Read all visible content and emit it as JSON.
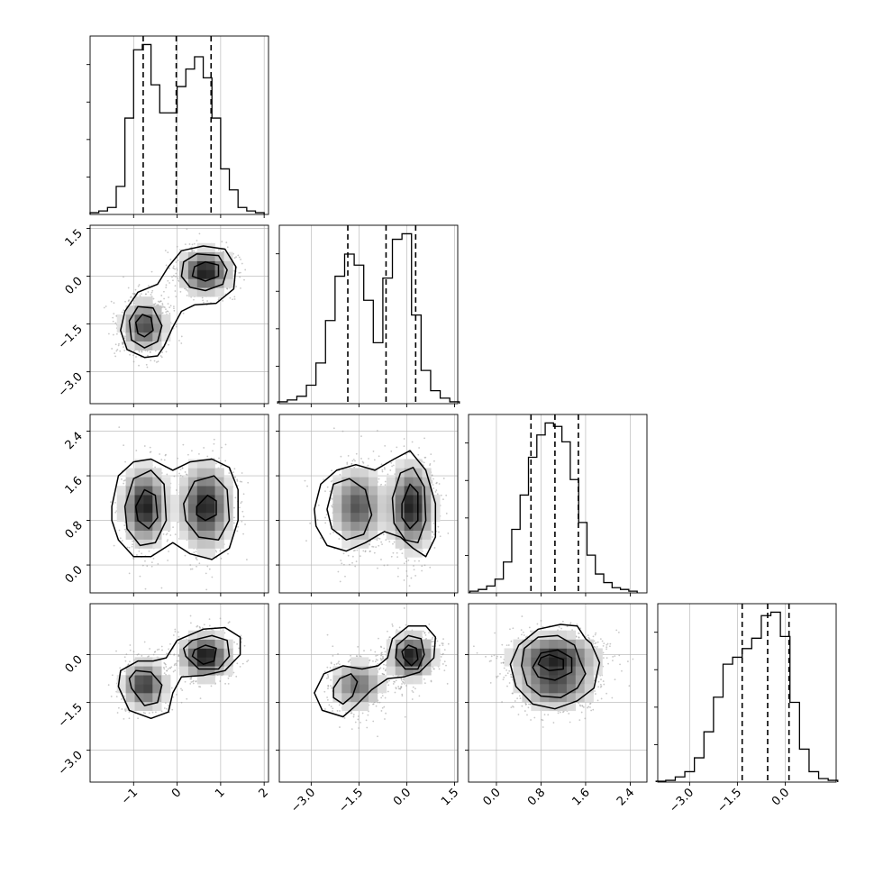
{
  "colors": {
    "ink": "#000000",
    "grid": "#b0b0b0",
    "scatter": "#9a9a9a",
    "bg": "#ffffff"
  },
  "chart_data": {
    "type": "corner",
    "parameters": 4,
    "grid": true,
    "panels": {
      "hist_0": {
        "type": "bar",
        "xlim": [
          -2,
          2.1
        ],
        "bins": [
          -1.9,
          -1.7,
          -1.5,
          -1.3,
          -1.1,
          -0.9,
          -0.7,
          -0.5,
          -0.3,
          -0.1,
          0.1,
          0.3,
          0.5,
          0.7,
          0.9,
          1.1,
          1.3,
          1.5,
          1.7,
          1.9
        ],
        "values": [
          0.01,
          0.02,
          0.04,
          0.16,
          0.55,
          0.94,
          0.97,
          0.74,
          0.58,
          0.58,
          0.73,
          0.83,
          0.9,
          0.78,
          0.55,
          0.26,
          0.14,
          0.04,
          0.02,
          0.01
        ],
        "quantiles": [
          -0.78,
          -0.02,
          0.78
        ]
      },
      "hist_1": {
        "type": "bar",
        "xlim": [
          -4,
          1.6
        ],
        "bins": [
          -3.9,
          -3.6,
          -3.3,
          -3.0,
          -2.7,
          -2.4,
          -2.1,
          -1.8,
          -1.5,
          -1.2,
          -0.9,
          -0.6,
          -0.3,
          0.0,
          0.3,
          0.6,
          0.9,
          1.2,
          1.5
        ],
        "values": [
          0.01,
          0.02,
          0.04,
          0.1,
          0.22,
          0.45,
          0.69,
          0.81,
          0.75,
          0.56,
          0.33,
          0.68,
          0.89,
          0.92,
          0.48,
          0.18,
          0.07,
          0.03,
          0.01
        ],
        "quantiles": [
          -1.85,
          -0.65,
          0.28
        ]
      },
      "hist_2": {
        "type": "bar",
        "xlim": [
          -0.5,
          2.7
        ],
        "bins": [
          -0.4,
          -0.25,
          -0.1,
          0.05,
          0.2,
          0.35,
          0.5,
          0.65,
          0.8,
          0.95,
          1.1,
          1.25,
          1.4,
          1.55,
          1.7,
          1.85,
          2.0,
          2.15,
          2.3,
          2.45
        ],
        "values": [
          0.01,
          0.02,
          0.04,
          0.08,
          0.18,
          0.37,
          0.57,
          0.79,
          0.92,
          0.99,
          0.97,
          0.88,
          0.66,
          0.41,
          0.22,
          0.11,
          0.06,
          0.03,
          0.02,
          0.01
        ],
        "quantiles": [
          0.62,
          1.05,
          1.47
        ]
      },
      "hist_3": {
        "type": "bar",
        "xlim": [
          -4,
          1.6
        ],
        "bins": [
          -3.9,
          -3.6,
          -3.3,
          -3.0,
          -2.7,
          -2.4,
          -2.1,
          -1.8,
          -1.5,
          -1.2,
          -0.9,
          -0.6,
          -0.3,
          0.0,
          0.3,
          0.6,
          0.9,
          1.2,
          1.5
        ],
        "values": [
          0.005,
          0.01,
          0.03,
          0.06,
          0.14,
          0.29,
          0.49,
          0.68,
          0.72,
          0.77,
          0.83,
          0.96,
          0.98,
          0.84,
          0.46,
          0.19,
          0.06,
          0.02,
          0.01
        ],
        "quantiles": [
          -1.35,
          -0.55,
          0.12
        ]
      }
    },
    "axes": {
      "p0": {
        "range": [
          -2,
          2.1
        ],
        "ticks": [
          -1,
          0,
          1,
          2
        ],
        "tick_labels": [
          "−1",
          "0",
          "1",
          "2"
        ]
      },
      "p1": {
        "range": [
          -4,
          1.6
        ],
        "ticks": [
          -3.0,
          -1.5,
          0.0,
          1.5
        ],
        "tick_labels": [
          "−3.0",
          "−1.5",
          "0.0",
          "1.5"
        ]
      },
      "p2": {
        "range": [
          -0.5,
          2.7
        ],
        "ticks": [
          0.0,
          0.8,
          1.6,
          2.4
        ],
        "tick_labels": [
          "0.0",
          "0.8",
          "1.6",
          "2.4"
        ]
      },
      "p3": {
        "range": [
          -4,
          1.6
        ],
        "ticks": [
          -3.0,
          -1.5,
          0.0
        ],
        "tick_labels": [
          "−3.0",
          "−1.5",
          "0.0"
        ]
      }
    },
    "modes": [
      {
        "mean": [
          -0.75,
          -1.55,
          1.05,
          -0.95
        ],
        "sd": [
          0.28,
          0.45,
          0.38,
          0.42
        ],
        "weight": 0.45
      },
      {
        "mean": [
          0.65,
          0.15,
          1.05,
          -0.05
        ],
        "sd": [
          0.32,
          0.38,
          0.42,
          0.38
        ],
        "weight": 0.55
      }
    ],
    "contours": {
      "p1_vs_p0": [
        {
          "level": 0.4,
          "x": [
            -0.75,
            -0.45,
            -0.3,
            -0.1,
            0.1,
            0.4,
            0.9,
            1.3,
            1.35,
            1.1,
            0.6,
            0.1,
            -0.2,
            -0.45,
            -0.9,
            -1.2,
            -1.3,
            -1.15
          ],
          "y": [
            -2.55,
            -2.5,
            -2.2,
            -1.6,
            -1.1,
            -0.9,
            -0.85,
            -0.4,
            0.3,
            0.85,
            0.95,
            0.8,
            0.3,
            -0.25,
            -0.5,
            -1.1,
            -1.7,
            -2.3
          ]
        },
        {
          "level": 0.7,
          "x": [
            -0.75,
            -0.45,
            -0.35,
            -0.55,
            -0.9,
            -1.1,
            -1.05
          ],
          "y": [
            -2.25,
            -2.05,
            -1.55,
            -1.0,
            -0.95,
            -1.4,
            -2.0
          ]
        },
        {
          "level": 0.7,
          "x": [
            0.65,
            1.05,
            1.15,
            0.95,
            0.45,
            0.15,
            0.1,
            0.3
          ],
          "y": [
            -0.45,
            -0.25,
            0.2,
            0.65,
            0.7,
            0.45,
            0.0,
            -0.35
          ]
        },
        {
          "level": 0.9,
          "x": [
            -0.75,
            -0.55,
            -0.6,
            -0.8,
            -0.95,
            -0.9
          ],
          "y": [
            -1.9,
            -1.7,
            -1.3,
            -1.2,
            -1.45,
            -1.8
          ]
        },
        {
          "level": 0.9,
          "x": [
            0.65,
            0.95,
            0.95,
            0.65,
            0.4,
            0.35
          ],
          "y": [
            -0.15,
            0.0,
            0.35,
            0.45,
            0.3,
            0.0
          ]
        }
      ],
      "p2_vs_p0": [
        {
          "level": 0.4,
          "x": [
            -1.5,
            -1.35,
            -1.0,
            -0.6,
            -0.1,
            0.3,
            0.8,
            1.2,
            1.4,
            1.4,
            1.2,
            0.8,
            0.3,
            -0.1,
            -0.6,
            -1.0,
            -1.35,
            -1.5
          ],
          "y": [
            1.05,
            1.6,
            1.85,
            1.9,
            1.7,
            1.85,
            1.9,
            1.75,
            1.35,
            0.8,
            0.3,
            0.1,
            0.2,
            0.4,
            0.15,
            0.15,
            0.45,
            0.8
          ]
        },
        {
          "level": 0.7,
          "x": [
            -1.2,
            -1.0,
            -0.6,
            -0.3,
            -0.25,
            -0.5,
            -0.85,
            -1.15
          ],
          "y": [
            1.05,
            1.55,
            1.7,
            1.45,
            0.8,
            0.4,
            0.35,
            0.65
          ]
        },
        {
          "level": 0.7,
          "x": [
            0.15,
            0.4,
            0.85,
            1.15,
            1.2,
            0.95,
            0.5,
            0.2
          ],
          "y": [
            1.1,
            1.5,
            1.6,
            1.35,
            0.8,
            0.45,
            0.5,
            0.8
          ]
        },
        {
          "level": 0.9,
          "x": [
            -0.95,
            -0.75,
            -0.5,
            -0.45,
            -0.65,
            -0.9
          ],
          "y": [
            1.05,
            1.35,
            1.25,
            0.85,
            0.65,
            0.8
          ]
        },
        {
          "level": 0.9,
          "x": [
            0.45,
            0.7,
            0.9,
            0.9,
            0.65,
            0.45
          ],
          "y": [
            1.05,
            1.25,
            1.15,
            0.9,
            0.8,
            0.9
          ]
        }
      ],
      "p2_vs_p1": [
        {
          "level": 0.4,
          "x": [
            -2.9,
            -2.7,
            -2.2,
            -1.6,
            -1.0,
            -0.4,
            0.1,
            0.6,
            0.9,
            0.9,
            0.6,
            0.2,
            -0.2,
            -0.7,
            -1.3,
            -1.9,
            -2.5,
            -2.85
          ],
          "y": [
            1.0,
            1.45,
            1.7,
            1.8,
            1.7,
            1.9,
            2.05,
            1.7,
            1.1,
            0.5,
            0.15,
            0.3,
            0.5,
            0.6,
            0.4,
            0.25,
            0.35,
            0.7
          ]
        },
        {
          "level": 0.7,
          "x": [
            -2.5,
            -2.3,
            -1.8,
            -1.3,
            -1.1,
            -1.35,
            -1.9,
            -2.35
          ],
          "y": [
            1.0,
            1.45,
            1.55,
            1.35,
            0.9,
            0.55,
            0.45,
            0.65
          ]
        },
        {
          "level": 0.7,
          "x": [
            -0.45,
            -0.2,
            0.2,
            0.55,
            0.6,
            0.35,
            -0.05,
            -0.4
          ],
          "y": [
            1.2,
            1.65,
            1.75,
            1.4,
            0.8,
            0.4,
            0.45,
            0.75
          ]
        },
        {
          "level": 0.9,
          "x": [
            -0.15,
            0.1,
            0.35,
            0.35,
            0.1,
            -0.15
          ],
          "y": [
            1.1,
            1.45,
            1.3,
            0.8,
            0.65,
            0.85
          ]
        }
      ],
      "p3_vs_p0": [
        {
          "level": 0.4,
          "x": [
            -1.35,
            -1.1,
            -0.6,
            -0.2,
            -0.1,
            0.1,
            0.6,
            1.1,
            1.45,
            1.45,
            1.1,
            0.6,
            0.0,
            -0.25,
            -0.55,
            -0.9,
            -1.3
          ],
          "y": [
            -1.0,
            -1.75,
            -2.0,
            -1.8,
            -1.2,
            -0.7,
            -0.65,
            -0.5,
            0.0,
            0.55,
            0.85,
            0.8,
            0.45,
            -0.1,
            -0.2,
            -0.2,
            -0.5
          ]
        },
        {
          "level": 0.7,
          "x": [
            -1.05,
            -0.75,
            -0.45,
            -0.35,
            -0.6,
            -0.95,
            -1.1
          ],
          "y": [
            -1.05,
            -1.6,
            -1.5,
            -0.95,
            -0.55,
            -0.5,
            -0.75
          ]
        },
        {
          "level": 0.7,
          "x": [
            0.2,
            0.5,
            0.95,
            1.2,
            1.15,
            0.8,
            0.35,
            0.15
          ],
          "y": [
            -0.05,
            -0.45,
            -0.45,
            -0.05,
            0.45,
            0.6,
            0.45,
            0.2
          ]
        },
        {
          "level": 0.9,
          "x": [
            0.35,
            0.6,
            0.85,
            0.9,
            0.65,
            0.4
          ],
          "y": [
            -0.05,
            -0.3,
            -0.2,
            0.2,
            0.3,
            0.15
          ]
        }
      ],
      "p3_vs_p1": [
        {
          "level": 0.4,
          "x": [
            -2.9,
            -2.65,
            -2.0,
            -1.6,
            -1.1,
            -0.6,
            -0.1,
            0.4,
            0.85,
            0.9,
            0.6,
            0.05,
            -0.45,
            -0.6,
            -0.9,
            -1.4,
            -2.0,
            -2.6
          ],
          "y": [
            -1.2,
            -1.75,
            -1.95,
            -1.6,
            -1.1,
            -0.75,
            -0.7,
            -0.55,
            -0.1,
            0.55,
            0.9,
            0.9,
            0.5,
            -0.1,
            -0.35,
            -0.45,
            -0.35,
            -0.6
          ]
        },
        {
          "level": 0.7,
          "x": [
            -2.3,
            -2.0,
            -1.7,
            -1.55,
            -1.75,
            -2.1,
            -2.3
          ],
          "y": [
            -1.35,
            -1.55,
            -1.3,
            -0.85,
            -0.6,
            -0.75,
            -1.05
          ]
        },
        {
          "level": 0.7,
          "x": [
            -0.35,
            -0.05,
            0.35,
            0.55,
            0.45,
            0.05,
            -0.3
          ],
          "y": [
            -0.1,
            -0.45,
            -0.45,
            0.0,
            0.5,
            0.6,
            0.3
          ]
        },
        {
          "level": 0.9,
          "x": [
            -0.1,
            0.15,
            0.35,
            0.3,
            0.05,
            -0.15
          ],
          "y": [
            -0.1,
            -0.35,
            -0.15,
            0.2,
            0.3,
            0.1
          ]
        }
      ],
      "p3_vs_p2": [
        {
          "level": 0.4,
          "x": [
            0.25,
            0.35,
            0.65,
            1.05,
            1.45,
            1.75,
            1.85,
            1.7,
            1.6,
            1.45,
            1.15,
            0.75,
            0.4
          ],
          "y": [
            -0.3,
            -1.0,
            -1.55,
            -1.7,
            -1.45,
            -1.05,
            -0.25,
            0.35,
            0.5,
            0.9,
            0.95,
            0.8,
            0.3
          ]
        },
        {
          "level": 0.7,
          "x": [
            0.45,
            0.55,
            0.8,
            1.15,
            1.45,
            1.6,
            1.5,
            1.4,
            1.1,
            0.75,
            0.5
          ],
          "y": [
            -0.35,
            -0.95,
            -1.3,
            -1.35,
            -1.05,
            -0.6,
            -0.2,
            0.3,
            0.6,
            0.55,
            0.2
          ]
        },
        {
          "level": 0.9,
          "x": [
            0.65,
            0.75,
            1.05,
            1.35,
            1.35,
            1.1,
            0.8
          ],
          "y": [
            -0.4,
            -0.7,
            -0.8,
            -0.55,
            -0.1,
            0.15,
            0.05
          ]
        },
        {
          "level": 0.95,
          "x": [
            0.75,
            0.95,
            1.2,
            1.2,
            0.95,
            0.8
          ],
          "y": [
            -0.3,
            -0.5,
            -0.45,
            -0.15,
            0.0,
            -0.1
          ]
        }
      ]
    }
  }
}
